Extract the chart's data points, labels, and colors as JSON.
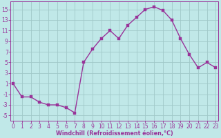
{
  "x": [
    0,
    1,
    2,
    3,
    4,
    5,
    6,
    7,
    8,
    9,
    10,
    11,
    12,
    13,
    14,
    15,
    16,
    17,
    18,
    19,
    20,
    21,
    22,
    23
  ],
  "y": [
    1,
    -1.5,
    -1.5,
    -2.5,
    -3,
    -3,
    -3.5,
    -4.5,
    5,
    7.5,
    9.5,
    11,
    9.5,
    12,
    13.5,
    15,
    15.5,
    14.8,
    13,
    9.5,
    6.5,
    4,
    5,
    4
  ],
  "line_color": "#993399",
  "marker_color": "#993399",
  "bg_color": "#c0e8e8",
  "grid_color": "#a0c8c8",
  "xlabel": "Windchill (Refroidissement éolien,°C)",
  "ylabel": "",
  "ylim": [
    -6,
    16.5
  ],
  "xlim": [
    -0.3,
    23.3
  ],
  "yticks": [
    -5,
    -3,
    -1,
    1,
    3,
    5,
    7,
    9,
    11,
    13,
    15
  ],
  "xticks": [
    0,
    1,
    2,
    3,
    4,
    5,
    6,
    7,
    8,
    9,
    10,
    11,
    12,
    13,
    14,
    15,
    16,
    17,
    18,
    19,
    20,
    21,
    22,
    23
  ],
  "font_color": "#993399",
  "marker_size": 2.5,
  "line_width": 1.0,
  "tick_fontsize": 5.5,
  "xlabel_fontsize": 5.8
}
